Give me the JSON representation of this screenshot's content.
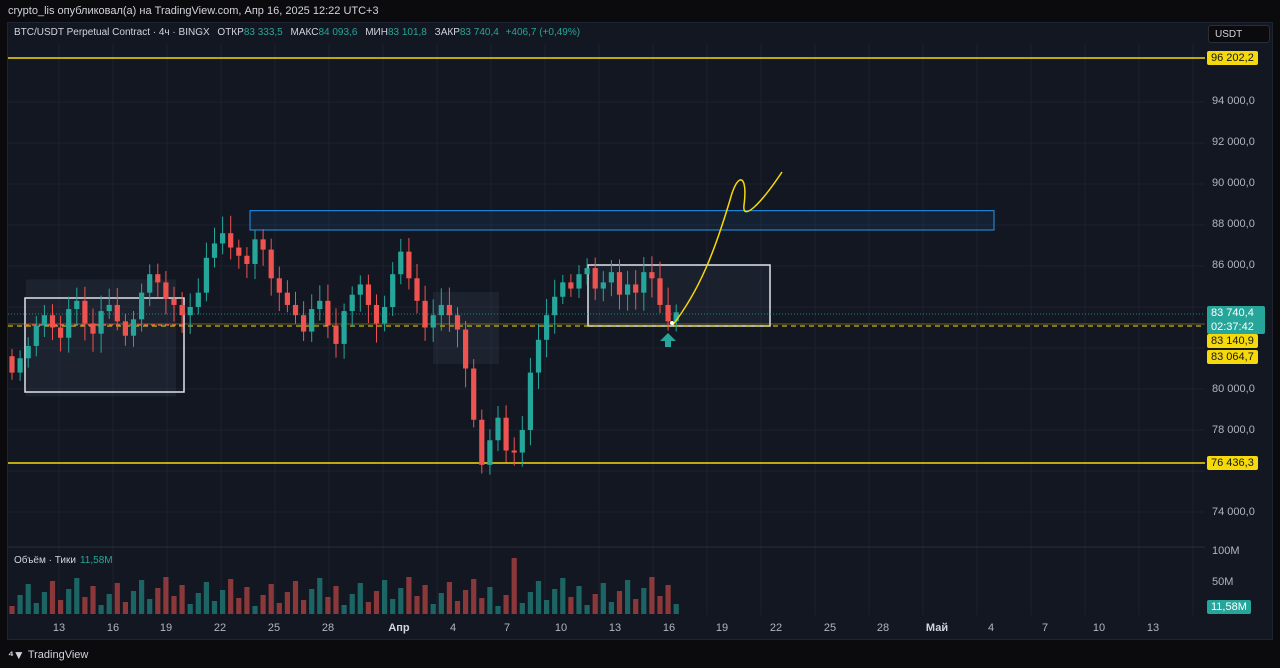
{
  "header": {
    "attribution": "crypto_lis опубликовал(а) на TradingView.com, Апр 16, 2025 12:22 UTC+3"
  },
  "legend": {
    "symbol": "BTC/USDT Perpetual Contract · 4ч · BINGX",
    "open_label": "ОТКР",
    "open": "83 333,5",
    "high_label": "МАКС",
    "high": "84 093,6",
    "low_label": "МИН",
    "low": "83 101,8",
    "close_label": "ЗАКР",
    "close": "83 740,4",
    "change": "+406,7 (+0,49%)"
  },
  "currency": "USDT",
  "volume_legend": {
    "label": "Объём · Тики",
    "value": "11,58M"
  },
  "price_axis": {
    "ticks": [
      "94 000,0",
      "92 000,0",
      "90 000,0",
      "88 000,0",
      "86 000,0",
      "80 000,0",
      "78 000,0",
      "74 000,0"
    ],
    "volume_ticks": [
      "100M",
      "50M"
    ],
    "tags": {
      "upper_level": "96 202,2",
      "last_price": "83 740,4",
      "countdown": "02:37:42",
      "level_a": "83 140,9",
      "level_b": "83 064,7",
      "lower_level": "76 436,3",
      "volume_last": "11,58M"
    }
  },
  "time_axis": [
    "13",
    "16",
    "19",
    "22",
    "25",
    "28",
    "Апр",
    "4",
    "7",
    "10",
    "13",
    "16",
    "19",
    "22",
    "25",
    "28",
    "Май",
    "4",
    "7",
    "10",
    "13"
  ],
  "colors": {
    "up": "#26a69a",
    "down": "#ef5350",
    "level": "#f5d90a",
    "zone": "#2196f3",
    "bg": "#131722"
  },
  "drawings": {
    "arrow_icon": "arrow-up-icon",
    "projection": "yellow-hand-drawn-curve"
  },
  "chart_data": {
    "type": "candlestick",
    "series": [
      {
        "name": "BTC/USDT Perpetual Contract",
        "close": [
          80800,
          81500,
          82100,
          83100,
          83600,
          83000,
          82500,
          83900,
          84300,
          83200,
          82700,
          83800,
          84100,
          83300,
          82600,
          83400,
          84700,
          85600,
          85200,
          84400,
          84100,
          83600,
          84000,
          84700,
          86400,
          87100,
          87600,
          86900,
          86500,
          86100,
          87300,
          86800,
          85400,
          84700,
          84100,
          83600,
          82800,
          83900,
          84300,
          83100,
          82200,
          83800,
          84600,
          85100,
          84100,
          83200,
          84000,
          85600,
          86700,
          85400,
          84300,
          83000,
          83600,
          84100,
          83600,
          82900,
          81000,
          78500,
          76300,
          77500,
          78600,
          77000,
          76900,
          78000,
          80800,
          82400,
          83600,
          84500,
          85200,
          84900,
          85600,
          85900,
          84900,
          85200,
          85700,
          84600,
          85100,
          84700,
          85700,
          85400,
          84100,
          83300,
          83740
        ]
      }
    ],
    "levels": [
      96202.2,
      83140.9,
      83064.7,
      76436.3
    ],
    "zones": [
      {
        "from": 88000,
        "to": 88700
      }
    ],
    "ylim": [
      73000,
      97500
    ]
  }
}
